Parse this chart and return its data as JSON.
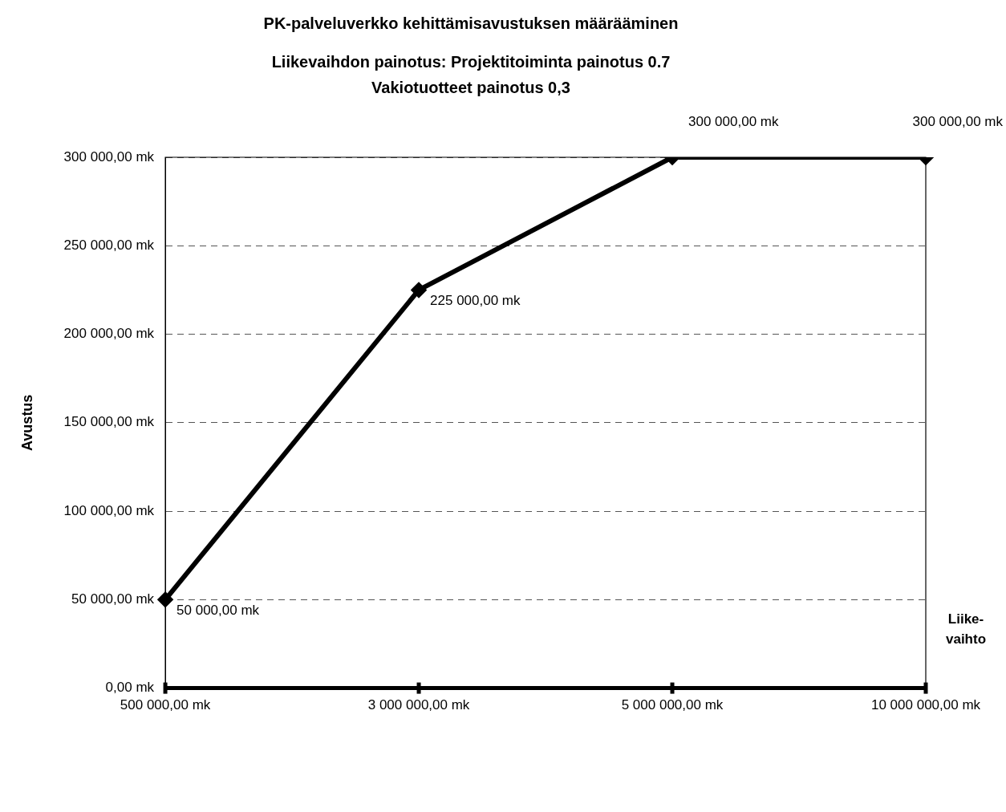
{
  "chart_data": {
    "type": "line",
    "title": "PK-palveluverkko kehittämisavustuksen määrääminen",
    "subtitle": "Liikevaihdon painotus: Projektitoiminta painotus 0.7\nVakiotuotteet painotus 0,3",
    "xlabel": "Liike-vaihto",
    "ylabel": "Avustus",
    "categories": [
      "500 000,00 mk",
      "3 000 000,00 mk",
      "5 000 000,00 mk",
      "10 000 000,00 mk"
    ],
    "series": [
      {
        "color": "#000000",
        "values": [
          50000,
          225000,
          300000,
          300000
        ],
        "value_labels": [
          "50 000,00 mk",
          "225 000,00 mk",
          "300 000,00 mk",
          "300 000,00 mk"
        ]
      }
    ],
    "ylim": [
      0,
      300000
    ],
    "yticks": [
      {
        "value": 0,
        "label": "0,00 mk"
      },
      {
        "value": 50000,
        "label": "50 000,00 mk"
      },
      {
        "value": 100000,
        "label": "100 000,00 mk"
      },
      {
        "value": 150000,
        "label": "150 000,00 mk"
      },
      {
        "value": 200000,
        "label": "200 000,00 mk"
      },
      {
        "value": 250000,
        "label": "250 000,00 mk"
      },
      {
        "value": 300000,
        "label": "300 000,00 mk"
      }
    ],
    "grid": "y",
    "legend": false,
    "marker": "diamond",
    "line_style": "solid"
  }
}
